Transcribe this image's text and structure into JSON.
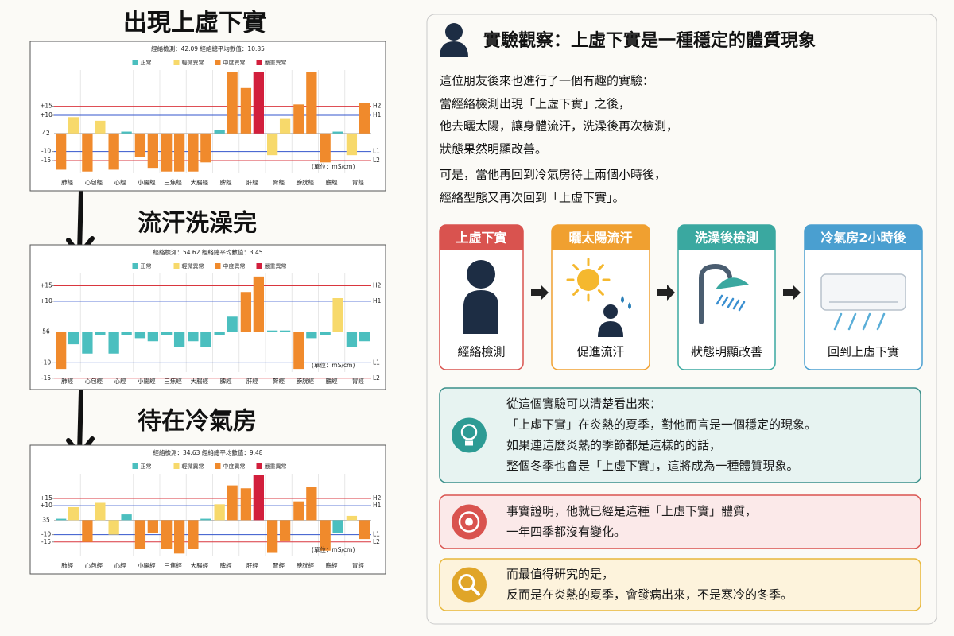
{
  "headings": [
    "出現上虛下實",
    "流汗洗澡完",
    "待在冷氣房"
  ],
  "chart_data": [
    {
      "type": "bar",
      "title": "經絡檢測：42.09 經絡總平均數值：10.85",
      "legend": [
        {
          "name": "正常",
          "color": "#4bbfbf"
        },
        {
          "name": "輕微異常",
          "color": "#f7d96b"
        },
        {
          "name": "中度異常",
          "color": "#f08a2c"
        },
        {
          "name": "嚴重異常",
          "color": "#d21f3c"
        }
      ],
      "baseline": 42,
      "categories": [
        "肺經",
        "心包經",
        "心經",
        "小腸經",
        "三焦經",
        "大腸經",
        "脾經",
        "肝經",
        "腎經",
        "膀胱經",
        "膽經",
        "胃經"
      ],
      "values": [
        [
          -20,
          9
        ],
        [
          -21,
          7
        ],
        [
          -20,
          1
        ],
        [
          -13,
          -19
        ],
        [
          -21,
          -21
        ],
        [
          -21,
          -16
        ],
        [
          2,
          34
        ],
        [
          25,
          34
        ],
        [
          -12,
          8
        ],
        [
          16,
          34
        ],
        [
          -16,
          1
        ],
        [
          -12,
          17
        ]
      ],
      "bar_colors": [
        [
          "#f08a2c",
          "#f7d96b"
        ],
        [
          "#f08a2c",
          "#f7d96b"
        ],
        [
          "#f08a2c",
          "#4bbfbf"
        ],
        [
          "#f08a2c",
          "#f08a2c"
        ],
        [
          "#f08a2c",
          "#f08a2c"
        ],
        [
          "#f08a2c",
          "#f08a2c"
        ],
        [
          "#4bbfbf",
          "#f08a2c"
        ],
        [
          "#f08a2c",
          "#d21f3c"
        ],
        [
          "#f7d96b",
          "#f7d96b"
        ],
        [
          "#f08a2c",
          "#f08a2c"
        ],
        [
          "#f08a2c",
          "#4bbfbf"
        ],
        [
          "#f7d96b",
          "#f08a2c"
        ]
      ],
      "ylim": [
        -22,
        35
      ],
      "yticks": [
        {
          "value": 15,
          "label": "+15"
        },
        {
          "value": 10,
          "label": "+10"
        },
        -10,
        -15
      ],
      "reference_lines": [
        {
          "value": 15,
          "label": "H2",
          "color": "#d9363e"
        },
        {
          "value": 10,
          "label": "H1",
          "color": "#3355cc"
        },
        {
          "value": -10,
          "label": "L1",
          "color": "#3355cc"
        },
        {
          "value": -15,
          "label": "L2",
          "color": "#d9363e"
        }
      ],
      "unit_note": "(單位：mS/cm)"
    },
    {
      "type": "bar",
      "title": "經絡檢測：54.62 經絡總平均數值：3.45",
      "legend": [
        {
          "name": "正常",
          "color": "#4bbfbf"
        },
        {
          "name": "輕微異常",
          "color": "#f7d96b"
        },
        {
          "name": "中度異常",
          "color": "#f08a2c"
        },
        {
          "name": "嚴重異常",
          "color": "#d21f3c"
        }
      ],
      "baseline": 56,
      "categories": [
        "肺經",
        "心包經",
        "心經",
        "小腸經",
        "三焦經",
        "大腸經",
        "脾經",
        "肝經",
        "腎經",
        "膀胱經",
        "膽經",
        "胃經"
      ],
      "values": [
        [
          -12,
          -4
        ],
        [
          -7,
          -1
        ],
        [
          -7,
          -1
        ],
        [
          -2,
          -3
        ],
        [
          -1,
          -5
        ],
        [
          -3,
          -5
        ],
        [
          -1,
          5
        ],
        [
          13,
          18
        ],
        [
          0.5,
          0.5
        ],
        [
          -12,
          -2
        ],
        [
          -1,
          11
        ],
        [
          -5,
          -3
        ]
      ],
      "bar_colors": [
        [
          "#f08a2c",
          "#4bbfbf"
        ],
        [
          "#4bbfbf",
          "#4bbfbf"
        ],
        [
          "#4bbfbf",
          "#4bbfbf"
        ],
        [
          "#4bbfbf",
          "#4bbfbf"
        ],
        [
          "#4bbfbf",
          "#4bbfbf"
        ],
        [
          "#4bbfbf",
          "#4bbfbf"
        ],
        [
          "#4bbfbf",
          "#4bbfbf"
        ],
        [
          "#f08a2c",
          "#f08a2c"
        ],
        [
          "#4bbfbf",
          "#4bbfbf"
        ],
        [
          "#f08a2c",
          "#4bbfbf"
        ],
        [
          "#4bbfbf",
          "#f7d96b"
        ],
        [
          "#4bbfbf",
          "#4bbfbf"
        ]
      ],
      "ylim": [
        -13,
        19
      ],
      "yticks": [
        {
          "value": 15,
          "label": "+15"
        },
        {
          "value": 10,
          "label": "+10"
        },
        -10,
        -15
      ],
      "reference_lines": [
        {
          "value": 15,
          "label": "H2",
          "color": "#d9363e"
        },
        {
          "value": 10,
          "label": "H1",
          "color": "#3355cc"
        },
        {
          "value": -10,
          "label": "L1",
          "color": "#3355cc"
        },
        {
          "value": -15,
          "label": "L2",
          "color": "#d9363e"
        }
      ],
      "unit_note": "(單位：mS/cm)"
    },
    {
      "type": "bar",
      "title": "經絡檢測：34.63 經絡總平均數值：9.48",
      "legend": [
        {
          "name": "正常",
          "color": "#4bbfbf"
        },
        {
          "name": "輕微異常",
          "color": "#f7d96b"
        },
        {
          "name": "中度異常",
          "color": "#f08a2c"
        },
        {
          "name": "嚴重異常",
          "color": "#d21f3c"
        }
      ],
      "baseline": 35,
      "categories": [
        "肺經",
        "心包經",
        "心經",
        "小腸經",
        "三焦經",
        "大腸經",
        "脾經",
        "肝經",
        "腎經",
        "膀胱經",
        "膽經",
        "胃經"
      ],
      "values": [
        [
          1,
          9
        ],
        [
          -15,
          12
        ],
        [
          -10,
          4
        ],
        [
          -20,
          -9
        ],
        [
          -20,
          -23
        ],
        [
          -20,
          1
        ],
        [
          11,
          24
        ],
        [
          22,
          31
        ],
        [
          -22,
          -14
        ],
        [
          13,
          23
        ],
        [
          -21,
          -9
        ],
        [
          3,
          -13
        ]
      ],
      "bar_colors": [
        [
          "#4bbfbf",
          "#f7d96b"
        ],
        [
          "#f08a2c",
          "#f7d96b"
        ],
        [
          "#f7d96b",
          "#4bbfbf"
        ],
        [
          "#f08a2c",
          "#f08a2c"
        ],
        [
          "#f08a2c",
          "#f08a2c"
        ],
        [
          "#f08a2c",
          "#4bbfbf"
        ],
        [
          "#f7d96b",
          "#f08a2c"
        ],
        [
          "#f08a2c",
          "#d21f3c"
        ],
        [
          "#f08a2c",
          "#f08a2c"
        ],
        [
          "#f08a2c",
          "#f08a2c"
        ],
        [
          "#f08a2c",
          "#4bbfbf"
        ],
        [
          "#f7d96b",
          "#f08a2c"
        ]
      ],
      "ylim": [
        -25,
        32
      ],
      "yticks": [
        {
          "value": 15,
          "label": "+15"
        },
        {
          "value": 10,
          "label": "+10"
        },
        -10,
        -15
      ],
      "reference_lines": [
        {
          "value": 15,
          "label": "H2",
          "color": "#d9363e"
        },
        {
          "value": 10,
          "label": "H1",
          "color": "#3355cc"
        },
        {
          "value": -10,
          "label": "L1",
          "color": "#3355cc"
        },
        {
          "value": -15,
          "label": "L2",
          "color": "#d9363e"
        }
      ],
      "unit_note": "(單位：mS/cm)"
    }
  ],
  "panel": {
    "title": "實驗觀察：上虛下實是一種穩定的體質現象",
    "intro": [
      "這位朋友後來也進行了一個有趣的實驗：",
      "當經絡檢測出現「上虛下實」之後，",
      "他去曬太陽，讓身體流汗，洗澡後再次檢測，",
      "狀態果然明顯改善。",
      "可是，當他再回到冷氣房待上兩個小時後，",
      "經絡型態又再次回到「上虛下實」。"
    ],
    "steps": [
      {
        "title": "上虛下實",
        "caption": "經絡檢測"
      },
      {
        "title": "曬太陽流汗",
        "caption": "促進流汗"
      },
      {
        "title": "洗澡後檢測",
        "caption": "狀態明顯改善"
      },
      {
        "title": "冷氣房2小時後",
        "caption": "回到上虛下實"
      }
    ],
    "callouts": [
      {
        "lines": [
          "從這個實驗可以清楚看出來：",
          "「上虛下實」在炎熱的夏季，對他而言是一個穩定的現象。",
          "如果連這麼炎熱的季節都是這樣的的話，",
          "整個冬季也會是「上虛下實」，這將成為一種體質現象。"
        ]
      },
      {
        "lines": [
          "事實證明，他就已經是這種「上虛下實」體質，",
          "一年四季都沒有變化。"
        ]
      },
      {
        "lines": [
          "而最值得研究的是，",
          "反而是在炎熱的夏季，會發病出來，不是寒冷的冬季。"
        ]
      }
    ]
  }
}
